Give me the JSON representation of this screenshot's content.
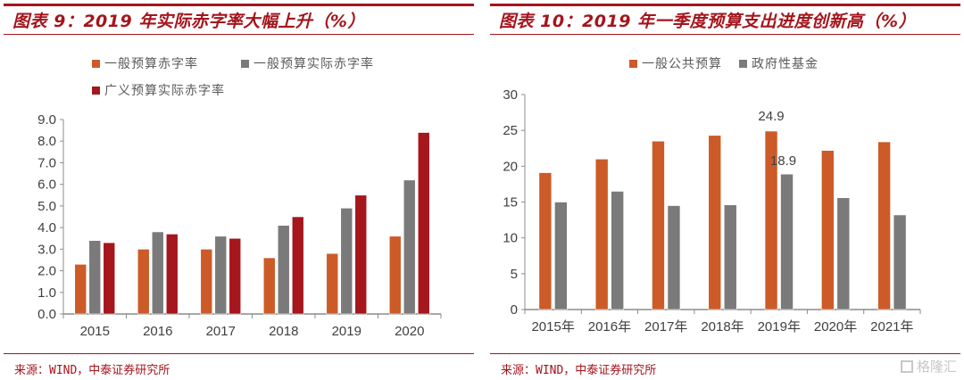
{
  "left_panel": {
    "title": "图表 9：2019 年实际赤字率大幅上升（%）",
    "source": "来源：WIND，中泰证券研究所"
  },
  "right_panel": {
    "title": "图表 10：2019 年一季度预算支出进度创新高（%）",
    "source": "来源：WIND，中泰证券研究所",
    "watermark": "格隆汇"
  },
  "chart_data": [
    {
      "type": "bar",
      "title": "图表 9：2019 年实际赤字率大幅上升（%）",
      "xlabel": "",
      "ylabel": "",
      "categories": [
        "2015",
        "2016",
        "2017",
        "2018",
        "2019",
        "2020"
      ],
      "series": [
        {
          "name": "一般预算赤字率",
          "color": "#cc5b28",
          "values": [
            2.3,
            3.0,
            3.0,
            2.6,
            2.8,
            3.6
          ]
        },
        {
          "name": "一般预算实际赤字率",
          "color": "#7a7a7a",
          "values": [
            3.4,
            3.8,
            3.6,
            4.1,
            4.9,
            6.2
          ]
        },
        {
          "name": "广义预算实际赤字率",
          "color": "#a5161d",
          "values": [
            3.3,
            3.7,
            3.5,
            4.5,
            5.5,
            8.4
          ]
        }
      ],
      "ylim": [
        0,
        9
      ],
      "yticks": [
        "0.0",
        "1.0",
        "2.0",
        "3.0",
        "4.0",
        "5.0",
        "6.0",
        "7.0",
        "8.0",
        "9.0"
      ],
      "grid": false,
      "legend": "top"
    },
    {
      "type": "bar",
      "title": "图表 10：2019 年一季度预算支出进度创新高（%）",
      "xlabel": "",
      "ylabel": "",
      "categories": [
        "2015年",
        "2016年",
        "2017年",
        "2018年",
        "2019年",
        "2020年",
        "2021年"
      ],
      "series": [
        {
          "name": "一般公共预算",
          "color": "#cc5b28",
          "values": [
            19.1,
            21.0,
            23.5,
            24.3,
            24.9,
            22.2,
            23.4
          ]
        },
        {
          "name": "政府性基金",
          "color": "#7a7a7a",
          "values": [
            15.0,
            16.5,
            14.5,
            14.6,
            18.9,
            15.6,
            13.2
          ]
        }
      ],
      "data_labels": [
        {
          "series": 0,
          "category": "2019年",
          "text": "24.9"
        },
        {
          "series": 1,
          "category": "2019年",
          "text": "18.9"
        }
      ],
      "ylim": [
        0,
        30
      ],
      "yticks": [
        "0",
        "5",
        "10",
        "15",
        "20",
        "25",
        "30"
      ],
      "grid": false,
      "legend": "top"
    }
  ]
}
